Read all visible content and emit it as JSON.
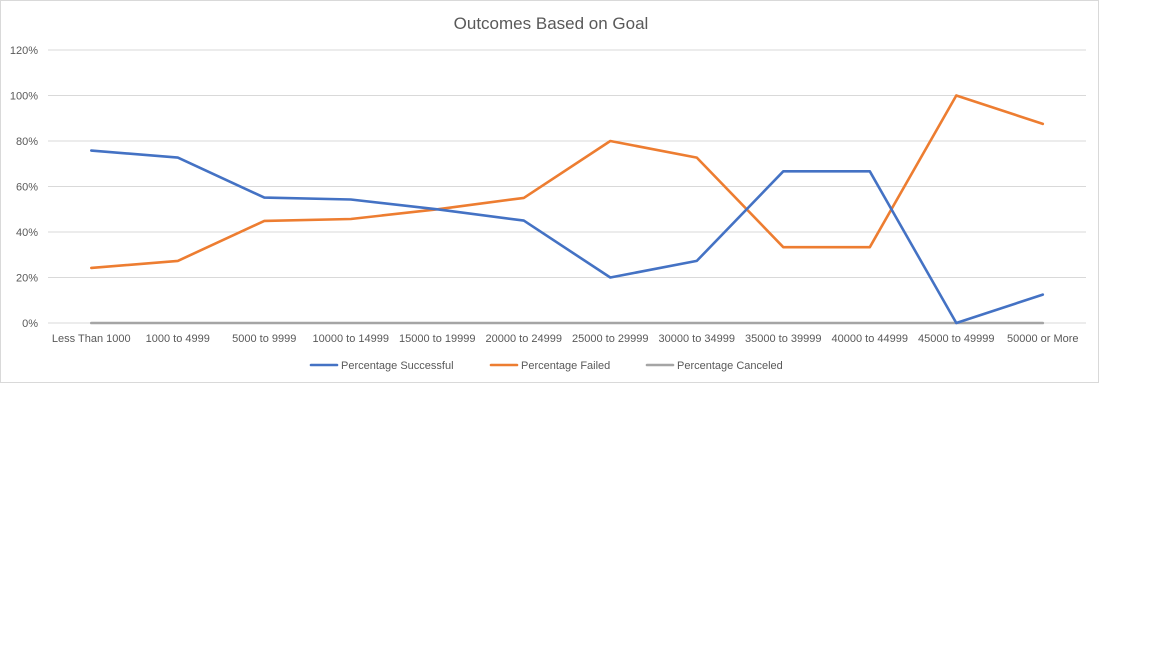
{
  "chart_data": {
    "type": "line",
    "title": "Outcomes Based on Goal",
    "xlabel": "",
    "ylabel": "",
    "categories": [
      "Less Than 1000",
      "1000 to 4999",
      "5000 to 9999",
      "10000 to 14999",
      "15000 to 19999",
      "20000 to 24999",
      "25000 to 29999",
      "30000 to 34999",
      "35000 to 39999",
      "40000 to 44999",
      "45000 to 49999",
      "50000 or More"
    ],
    "ylim": [
      0,
      120
    ],
    "yticks": [
      "0%",
      "20%",
      "40%",
      "60%",
      "80%",
      "100%",
      "120%"
    ],
    "yticks_values": [
      0,
      20,
      40,
      60,
      80,
      100,
      120
    ],
    "grid": true,
    "legend_position": "bottom",
    "series": [
      {
        "name": "Percentage Successful",
        "color": "#4472c4",
        "values": [
          75.8,
          72.7,
          55.1,
          54.3,
          50.0,
          45.0,
          20.0,
          27.3,
          66.7,
          66.7,
          0.0,
          12.5
        ]
      },
      {
        "name": "Percentage Failed",
        "color": "#ed7d31",
        "values": [
          24.2,
          27.3,
          44.9,
          45.7,
          50.0,
          55.0,
          80.0,
          72.7,
          33.3,
          33.3,
          100.0,
          87.5
        ]
      },
      {
        "name": "Percentage Canceled",
        "color": "#a5a5a5",
        "values": [
          0,
          0,
          0,
          0,
          0,
          0,
          0,
          0,
          0,
          0,
          0,
          0
        ]
      }
    ]
  }
}
